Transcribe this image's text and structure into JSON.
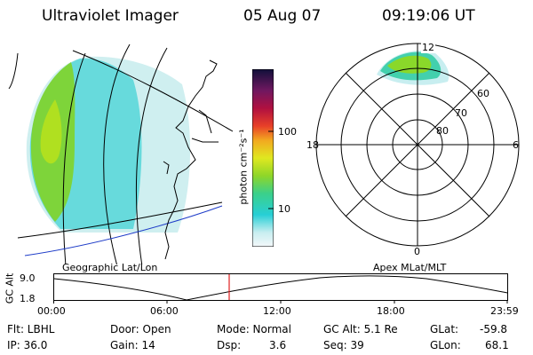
{
  "header": {
    "instrument": "Ultraviolet Imager",
    "date": "05 Aug 07",
    "time": "09:19:06 UT"
  },
  "colorbar": {
    "unit_label": "photon cm⁻²s⁻¹",
    "ticks": [
      "100",
      "10"
    ]
  },
  "panels": {
    "geo_label": "Geographic Lat/Lon",
    "apex_label": "Apex MLat/MLT",
    "polar_lat_labels": [
      "60",
      "70",
      "80"
    ],
    "polar_mlt_labels": [
      "12",
      "18",
      "6",
      "0"
    ]
  },
  "timeline": {
    "ylabel": "GC Alt",
    "y_ticks": [
      "9.0",
      "1.8"
    ],
    "x_ticks": [
      "00:00",
      "06:00",
      "12:00",
      "18:00",
      "23:59"
    ]
  },
  "footer": {
    "flt": "Flt: LBHL",
    "ip": "IP: 36.0",
    "door": "Door: Open",
    "gain": "Gain: 14",
    "mode": "Mode: Normal",
    "dsp_label": "Dsp:",
    "dsp_value": "3.6",
    "gc_alt": "GC Alt: 5.1 Re",
    "seq": "Seq: 39",
    "glat_label": "GLat:",
    "glat_value": "-59.8",
    "glon_label": "GLon:",
    "glon_value": "68.1"
  }
}
